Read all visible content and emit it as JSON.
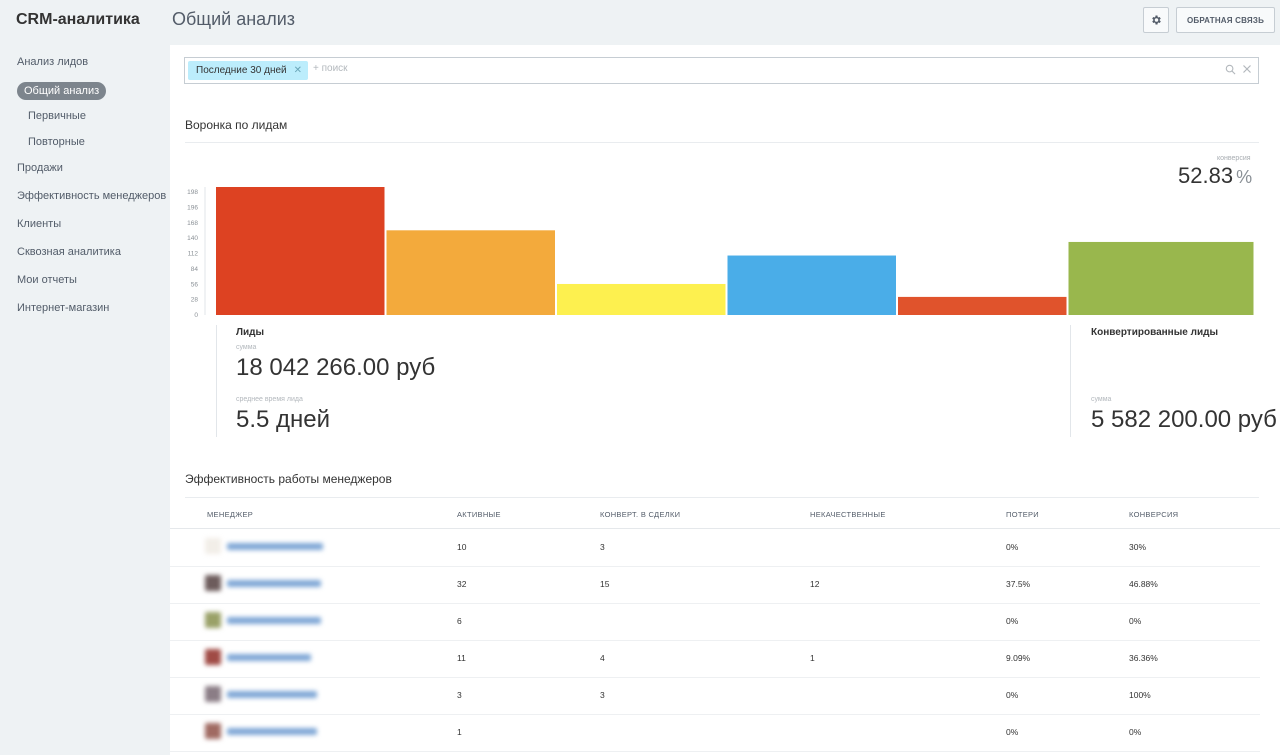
{
  "app": {
    "title": "CRM-аналитика"
  },
  "sidebar": {
    "items": [
      {
        "label": "Анализ лидов"
      },
      {
        "label": "Общий анализ"
      },
      {
        "label": "Первичные"
      },
      {
        "label": "Повторные"
      },
      {
        "label": "Продажи"
      },
      {
        "label": "Эффективность менеджеров"
      },
      {
        "label": "Клиенты"
      },
      {
        "label": "Сквозная аналитика"
      },
      {
        "label": "Мои отчеты"
      },
      {
        "label": "Интернет-магазин"
      }
    ]
  },
  "header": {
    "title": "Общий анализ",
    "feedback_label": "ОБРАТНАЯ СВЯЗЬ",
    "settings_icon": "gear-icon"
  },
  "filter": {
    "chip": "Последние 30 дней",
    "placeholder": "+ поиск"
  },
  "funnel": {
    "title": "Воронка по лидам",
    "conversion_label": "конверсия",
    "conversion_value": "52.83",
    "conversion_unit": "%",
    "leads": {
      "title": "Лиды",
      "sum_label": "сумма",
      "sum_value": "18 042 266.00 руб",
      "avg_label": "среднее время лида",
      "avg_value": "5.5 дней"
    },
    "converted": {
      "title": "Конвертированные лиды",
      "sum_label": "сумма",
      "sum_value": "5 582 200.00 руб"
    }
  },
  "chart_data": {
    "type": "bar",
    "yticks": [
      "198",
      "196",
      "168",
      "140",
      "112",
      "84",
      "56",
      "28",
      "0"
    ],
    "ylim": [
      0,
      198
    ],
    "values": [
      198,
      131,
      48,
      92,
      28,
      113
    ],
    "colors": [
      "#dd4222",
      "#f3aa3c",
      "#fdf04f",
      "#4aade8",
      "#e0532c",
      "#99b74d"
    ]
  },
  "managers": {
    "title": "Эффективность работы менеджеров",
    "columns": [
      "МЕНЕДЖЕР",
      "АКТИВНЫЕ",
      "КОНВЕРТ. В СДЕЛКИ",
      "НЕКАЧЕСТВЕННЫЕ",
      "ПОТЕРИ",
      "КОНВЕРСИЯ"
    ],
    "rows": [
      {
        "active": "10",
        "converted": "3",
        "bad": "",
        "loss": "0%",
        "conv": "30%"
      },
      {
        "active": "32",
        "converted": "15",
        "bad": "12",
        "loss": "37.5%",
        "conv": "46.88%"
      },
      {
        "active": "6",
        "converted": "",
        "bad": "",
        "loss": "0%",
        "conv": "0%"
      },
      {
        "active": "11",
        "converted": "4",
        "bad": "1",
        "loss": "9.09%",
        "conv": "36.36%"
      },
      {
        "active": "3",
        "converted": "3",
        "bad": "",
        "loss": "0%",
        "conv": "100%"
      },
      {
        "active": "1",
        "converted": "",
        "bad": "",
        "loss": "0%",
        "conv": "0%"
      }
    ]
  }
}
